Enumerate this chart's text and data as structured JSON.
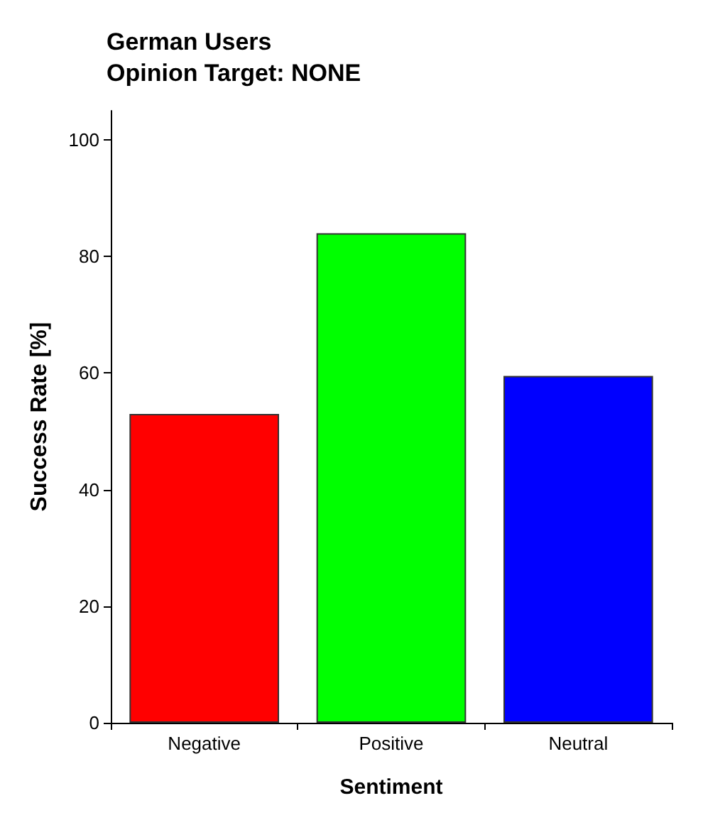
{
  "chart_data": {
    "type": "bar",
    "title": "German Users",
    "subtitle": "Opinion Target: NONE",
    "xlabel": "Sentiment",
    "ylabel": "Success Rate [%]",
    "categories": [
      "Negative",
      "Positive",
      "Neutral"
    ],
    "values": [
      53,
      84,
      59.5
    ],
    "colors": [
      "#ff0000",
      "#00ff00",
      "#0000ff"
    ],
    "ylim": [
      0,
      105
    ],
    "yticks": [
      0,
      20,
      40,
      60,
      80,
      100
    ],
    "grid": false
  }
}
